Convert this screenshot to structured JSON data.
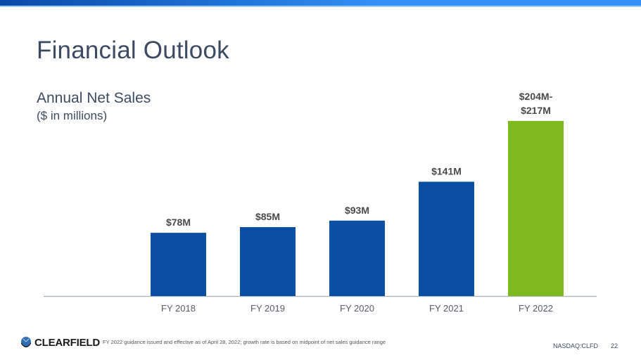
{
  "slide": {
    "title": "Financial Outlook",
    "subtitle": "Annual Net Sales",
    "unit_note": "($ in millions)",
    "footnote": "FY 2022 guidance issued and effective as of April 28, 2022; growth rate is based on midpoint of net sales guidance range",
    "ticker": "NASDAQ:CLFD",
    "page_number": "22",
    "logo_text": "CLEARFIELD",
    "logo_icon": "globe-hand-icon"
  },
  "colors": {
    "actual_bar": "#0a4fa3",
    "guidance_bar": "#7dba1e",
    "text": "#3b4b63",
    "label": "#4a4a4a"
  },
  "chart_data": {
    "type": "bar",
    "title": "Annual Net Sales",
    "subtitle": "($ in millions)",
    "xlabel": "",
    "ylabel": "",
    "categories": [
      "FY 2018",
      "FY 2019",
      "FY 2020",
      "FY 2021",
      "FY 2022"
    ],
    "values": [
      78,
      85,
      93,
      141,
      216
    ],
    "data_labels": [
      "$78M",
      "$85M",
      "$93M",
      "$141M",
      "$204M-\n$217M"
    ],
    "guidance_range": {
      "category": "FY 2022",
      "low": 204,
      "high": 217
    },
    "bar_colors": [
      "#0a4fa3",
      "#0a4fa3",
      "#0a4fa3",
      "#0a4fa3",
      "#7dba1e"
    ],
    "ylim": [
      0,
      220
    ],
    "grid": false,
    "legend": "none"
  }
}
